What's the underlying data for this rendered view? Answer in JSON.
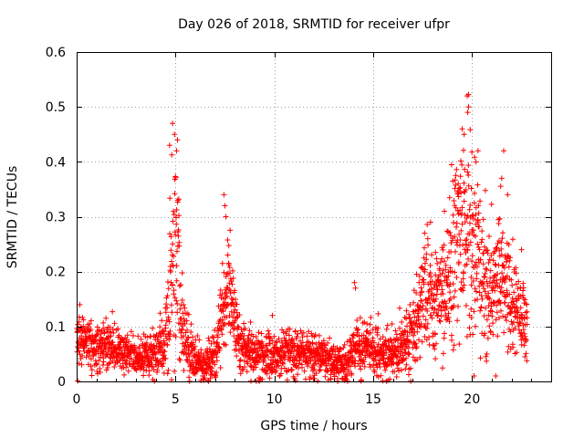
{
  "chart_data": {
    "type": "scatter",
    "title": "Day 026 of 2018, SRMTID for receiver ufpr",
    "xlabel": "GPS time / hours",
    "ylabel": "SRMTID / TECUs",
    "xlim": [
      0,
      24
    ],
    "ylim": [
      0,
      0.6
    ],
    "xticks": [
      0,
      5,
      10,
      15,
      20
    ],
    "yticks": [
      0,
      0.1,
      0.2,
      0.3,
      0.4,
      0.5,
      0.6
    ],
    "xtick_labels": [
      "0",
      "5",
      "10",
      "15",
      "20"
    ],
    "ytick_labels": [
      "0",
      "0.1",
      "0.2",
      "0.3",
      "0.4",
      "0.5",
      "0.6"
    ],
    "grid": true,
    "marker": "+",
    "series": [
      {
        "name": "SRMTID",
        "color": "#ff0000",
        "envelope": [
          [
            0.0,
            0.075,
            0.025
          ],
          [
            0.5,
            0.07,
            0.025
          ],
          [
            1.0,
            0.06,
            0.022
          ],
          [
            1.5,
            0.07,
            0.025
          ],
          [
            2.0,
            0.06,
            0.022
          ],
          [
            2.5,
            0.055,
            0.02
          ],
          [
            3.0,
            0.045,
            0.018
          ],
          [
            3.5,
            0.045,
            0.018
          ],
          [
            4.0,
            0.055,
            0.022
          ],
          [
            4.5,
            0.07,
            0.03
          ],
          [
            4.8,
            0.2,
            0.09
          ],
          [
            5.0,
            0.27,
            0.1
          ],
          [
            5.3,
            0.12,
            0.05
          ],
          [
            5.7,
            0.05,
            0.025
          ],
          [
            6.0,
            0.035,
            0.02
          ],
          [
            6.5,
            0.03,
            0.018
          ],
          [
            7.0,
            0.04,
            0.02
          ],
          [
            7.4,
            0.13,
            0.05
          ],
          [
            7.7,
            0.18,
            0.05
          ],
          [
            8.0,
            0.1,
            0.035
          ],
          [
            8.5,
            0.06,
            0.022
          ],
          [
            9.0,
            0.05,
            0.02
          ],
          [
            9.5,
            0.045,
            0.02
          ],
          [
            10.0,
            0.04,
            0.02
          ],
          [
            10.5,
            0.055,
            0.022
          ],
          [
            11.0,
            0.05,
            0.022
          ],
          [
            11.5,
            0.055,
            0.022
          ],
          [
            12.0,
            0.04,
            0.02
          ],
          [
            12.5,
            0.045,
            0.02
          ],
          [
            13.0,
            0.035,
            0.018
          ],
          [
            13.5,
            0.03,
            0.018
          ],
          [
            14.0,
            0.05,
            0.022
          ],
          [
            14.5,
            0.08,
            0.03
          ],
          [
            15.0,
            0.06,
            0.022
          ],
          [
            15.5,
            0.045,
            0.02
          ],
          [
            16.0,
            0.05,
            0.022
          ],
          [
            16.5,
            0.07,
            0.025
          ],
          [
            17.0,
            0.09,
            0.035
          ],
          [
            17.5,
            0.14,
            0.05
          ],
          [
            18.0,
            0.14,
            0.05
          ],
          [
            18.5,
            0.15,
            0.055
          ],
          [
            19.0,
            0.2,
            0.08
          ],
          [
            19.5,
            0.27,
            0.1
          ],
          [
            19.8,
            0.3,
            0.11
          ],
          [
            20.0,
            0.24,
            0.09
          ],
          [
            20.5,
            0.2,
            0.07
          ],
          [
            21.0,
            0.17,
            0.06
          ],
          [
            21.5,
            0.19,
            0.07
          ],
          [
            22.0,
            0.15,
            0.05
          ],
          [
            22.5,
            0.11,
            0.035
          ],
          [
            22.8,
            0.1,
            0.03
          ]
        ],
        "outliers": [
          [
            19.75,
            0.52
          ],
          [
            19.82,
            0.5
          ],
          [
            19.78,
            0.49
          ],
          [
            19.5,
            0.46
          ],
          [
            19.6,
            0.45
          ],
          [
            4.85,
            0.47
          ],
          [
            4.95,
            0.45
          ],
          [
            5.1,
            0.44
          ],
          [
            4.7,
            0.43
          ],
          [
            5.05,
            0.42
          ],
          [
            20.3,
            0.42
          ],
          [
            20.2,
            0.4
          ],
          [
            21.6,
            0.42
          ],
          [
            21.5,
            0.37
          ],
          [
            21.8,
            0.34
          ],
          [
            7.45,
            0.34
          ],
          [
            7.5,
            0.32
          ],
          [
            7.55,
            0.3
          ],
          [
            14.05,
            0.18
          ],
          [
            14.1,
            0.17
          ],
          [
            17.6,
            0.27
          ],
          [
            17.9,
            0.29
          ],
          [
            18.6,
            0.31
          ],
          [
            19.3,
            0.36
          ],
          [
            22.5,
            0.24
          ],
          [
            9.9,
            0.12
          ],
          [
            20.1,
            0.01
          ],
          [
            21.2,
            0.01
          ],
          [
            12.0,
            0.005
          ],
          [
            13.2,
            0.005
          ]
        ]
      }
    ]
  }
}
